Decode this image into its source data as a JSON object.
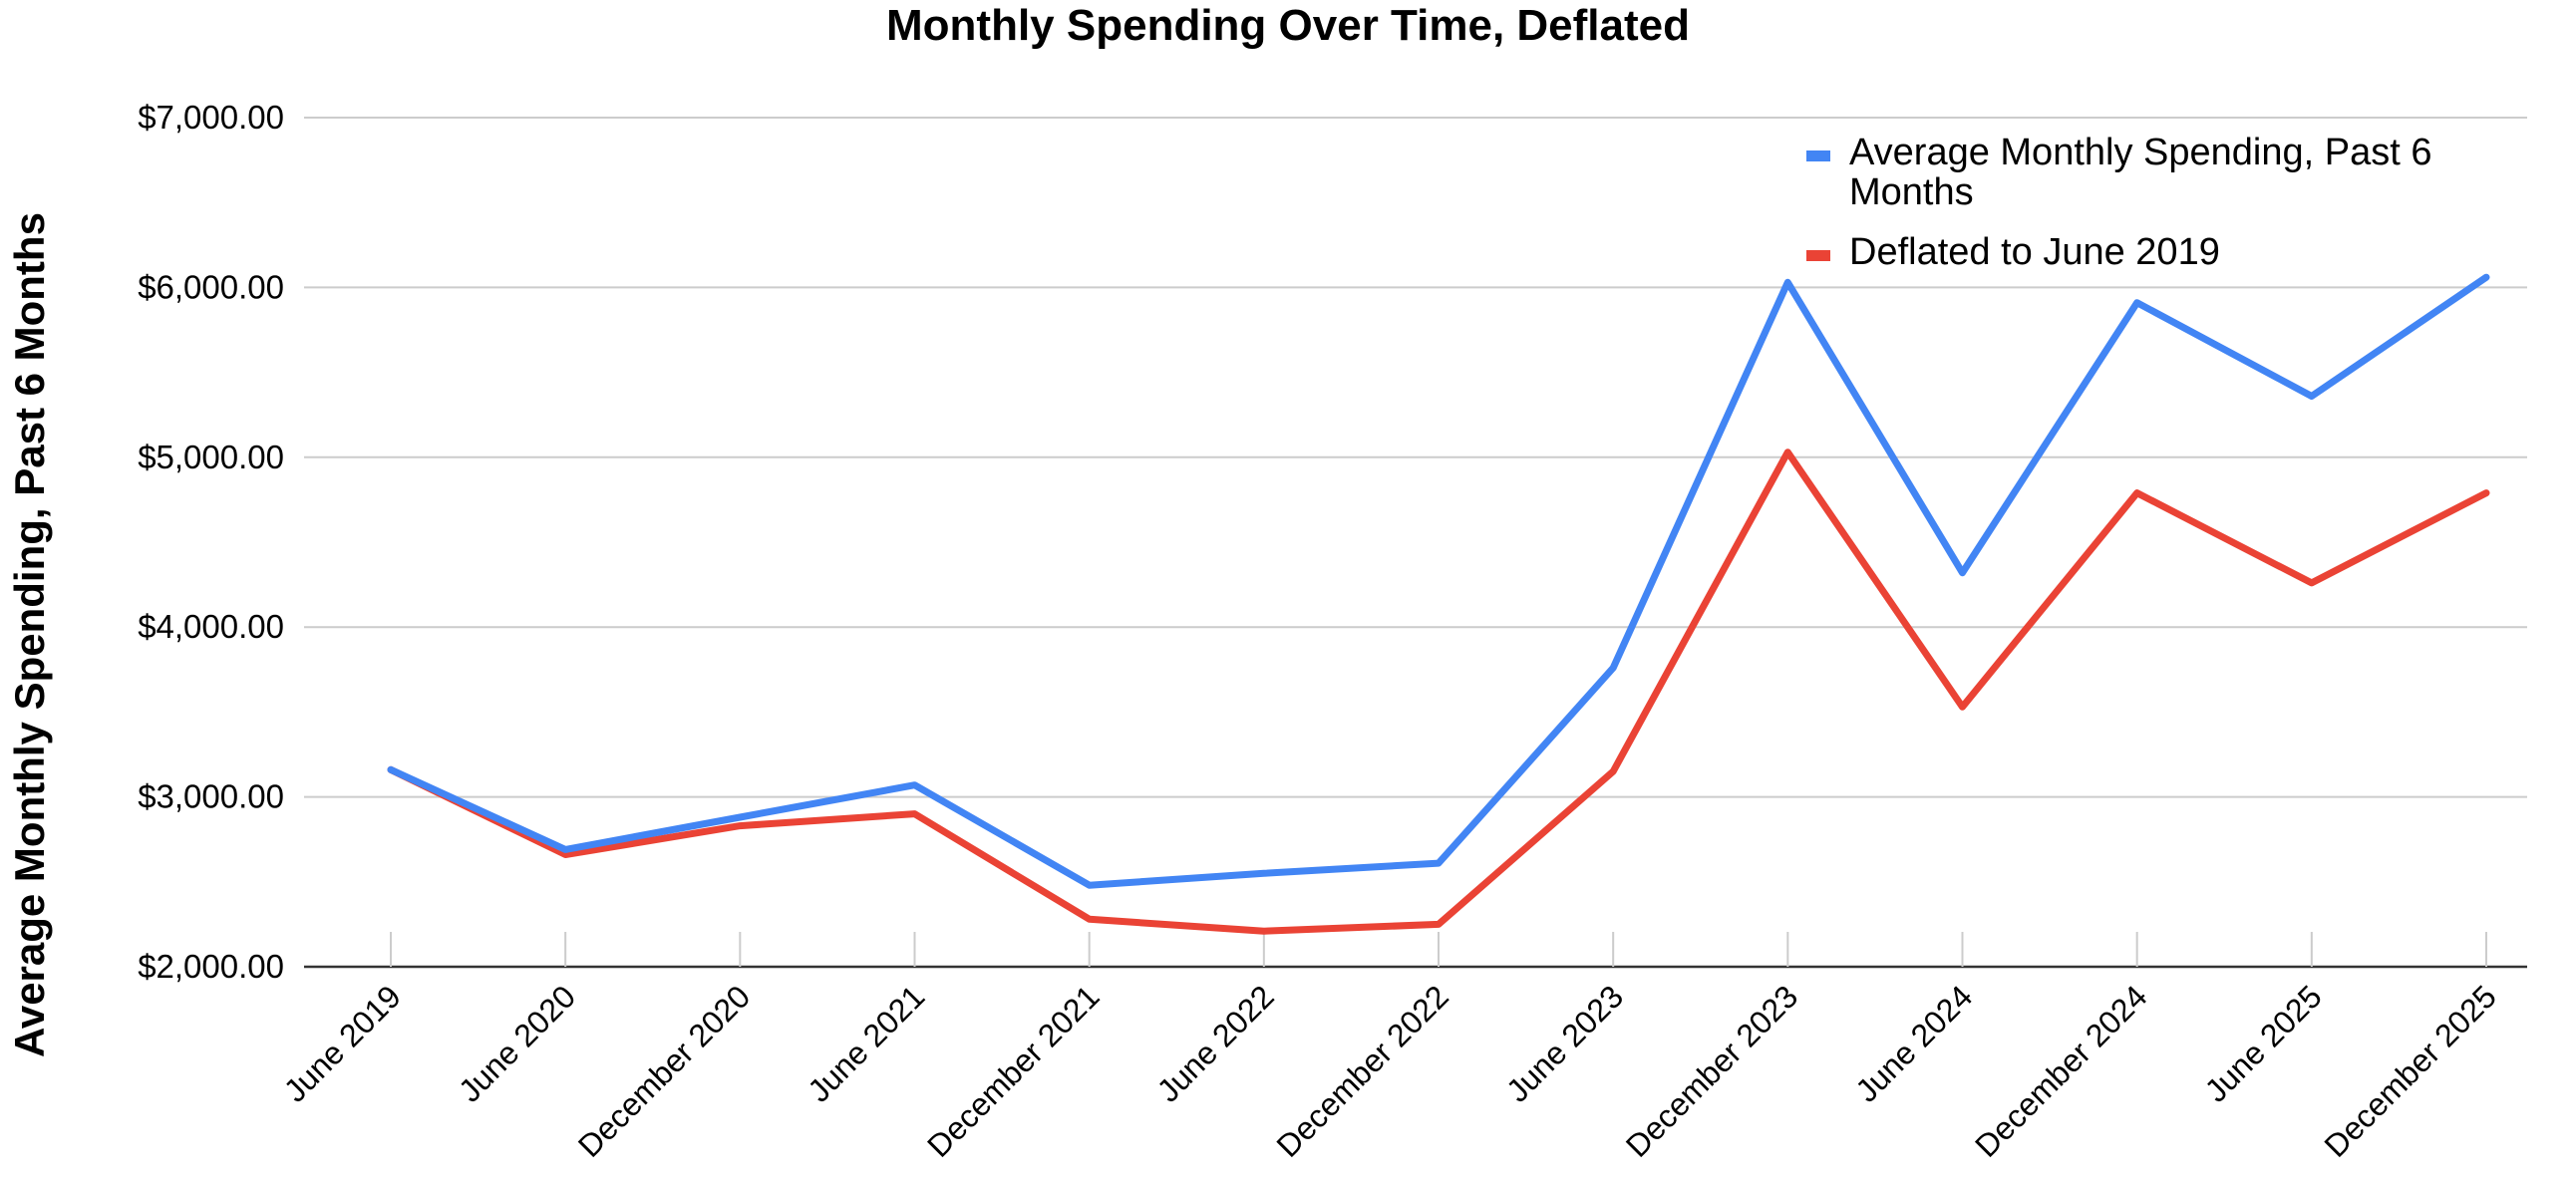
{
  "chart_data": {
    "type": "line",
    "title": "Monthly Spending Over Time, Deflated",
    "ylabel": "Average Monthly Spending, Past 6 Months",
    "xlabel": "",
    "ylim": [
      2000,
      7000
    ],
    "yticks": [
      2000,
      3000,
      4000,
      5000,
      6000,
      7000
    ],
    "ytick_labels": [
      "$2,000.00",
      "$3,000.00",
      "$4,000.00",
      "$5,000.00",
      "$6,000.00",
      "$7,000.00"
    ],
    "grid": true,
    "legend_position": "top-right",
    "categories": [
      "June 2019",
      "June 2020",
      "December 2020",
      "June 2021",
      "December 2021",
      "June 2022",
      "December 2022",
      "June 2023",
      "December 2023",
      "June 2024",
      "December 2024",
      "June 2025",
      "December 2025"
    ],
    "series": [
      {
        "name": "Average Monthly Spending, Past 6 Months",
        "legend_lines": [
          "Average Monthly Spending, Past 6",
          "Months"
        ],
        "color": "#4285f4",
        "values": [
          3160,
          2690,
          2880,
          3070,
          2480,
          2550,
          2610,
          3760,
          6030,
          4320,
          5910,
          5360,
          6060
        ]
      },
      {
        "name": "Deflated to June 2019",
        "legend_lines": [
          "Deflated to June 2019"
        ],
        "color": "#ea4335",
        "values": [
          3160,
          2660,
          2830,
          2900,
          2280,
          2210,
          2250,
          3150,
          5030,
          3530,
          4790,
          4260,
          4790
        ]
      }
    ]
  }
}
